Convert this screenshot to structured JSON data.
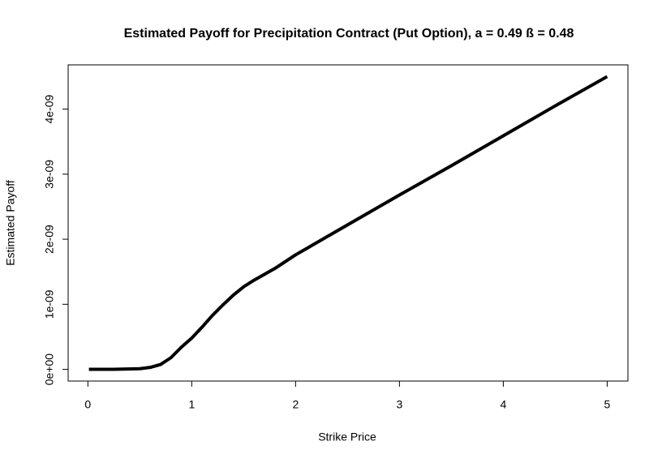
{
  "chart_data": {
    "type": "line",
    "title": "Estimated Payoff for Precipitation Contract (Put Option), a = 0.49 ß = 0.48",
    "x_label": "Strike Price",
    "y_label": "Estimated Payoff",
    "x": [
      0.01,
      0.25,
      0.5,
      0.6,
      0.7,
      0.8,
      0.9,
      1.0,
      1.1,
      1.2,
      1.3,
      1.4,
      1.5,
      1.6,
      1.8,
      2.0,
      2.5,
      3.0,
      3.5,
      4.0,
      4.5,
      5.0
    ],
    "series": [
      {
        "color": "#000000",
        "values": [
          0,
          0,
          1e-11,
          3e-11,
          7.5e-11,
          1.8e-10,
          3.4e-10,
          4.8e-10,
          6.5e-10,
          8.3e-10,
          9.9e-10,
          1.14e-09,
          1.27e-09,
          1.37e-09,
          1.55e-09,
          1.76e-09,
          2.22e-09,
          2.68e-09,
          3.13e-09,
          3.59e-09,
          4.05e-09,
          4.5e-09
        ]
      }
    ],
    "xlim": [
      -0.19,
      5.2
    ],
    "ylim": [
      -1.8e-10,
      4.68e-09
    ],
    "xticks": [
      0,
      1,
      2,
      3,
      4,
      5
    ],
    "yticks": [
      {
        "value": 0,
        "label": "0e+00"
      },
      {
        "value": 1e-09,
        "label": "1e-09"
      },
      {
        "value": 2e-09,
        "label": "2e-09"
      },
      {
        "value": 3e-09,
        "label": "3e-09"
      },
      {
        "value": 4e-09,
        "label": "4e-09"
      }
    ]
  }
}
